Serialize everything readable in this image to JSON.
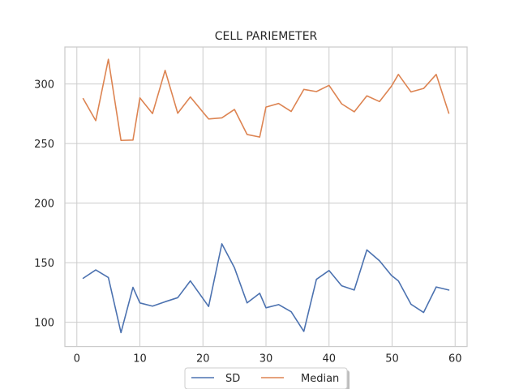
{
  "chart_data": {
    "type": "line",
    "title": "CELL PARIEMETER",
    "xlabel": "",
    "ylabel": "",
    "xlim": [
      -1.9,
      61.9
    ],
    "ylim": [
      79.6,
      331.0
    ],
    "xticks": [
      0,
      10,
      20,
      30,
      40,
      50,
      60
    ],
    "yticks": [
      100,
      150,
      200,
      250,
      300
    ],
    "grid": true,
    "legend_position": "bottom-center",
    "x": [
      1,
      3,
      5,
      7,
      8.9,
      10,
      12,
      14,
      16,
      18,
      20.9,
      23,
      25,
      27,
      29,
      30,
      32,
      34,
      36,
      38,
      40,
      42,
      44,
      46,
      48,
      49.9,
      51,
      53,
      55,
      57,
      59
    ],
    "series": [
      {
        "name": "SD",
        "color": "#4c72b0",
        "values": [
          136.9,
          143.9,
          137.5,
          91.3,
          129.3,
          116.2,
          113.5,
          117.2,
          120.6,
          134.7,
          113.2,
          165.8,
          145.7,
          116.2,
          124.3,
          112.1,
          114.8,
          108.8,
          92.3,
          136.0,
          143.4,
          130.6,
          127.0,
          160.7,
          151.6,
          139.3,
          134.7,
          115.1,
          108.2,
          129.6,
          127.0
        ]
      },
      {
        "name": "Median",
        "color": "#dd8452",
        "values": [
          287.7,
          269.2,
          320.7,
          252.6,
          252.9,
          288.3,
          275.1,
          311.4,
          275.4,
          289.1,
          270.6,
          271.5,
          278.6,
          257.6,
          255.4,
          280.6,
          283.6,
          276.9,
          295.4,
          293.6,
          298.8,
          283.3,
          276.6,
          290.0,
          285.2,
          298.1,
          308.0,
          293.3,
          296.2,
          308.0,
          275.4
        ]
      }
    ]
  }
}
